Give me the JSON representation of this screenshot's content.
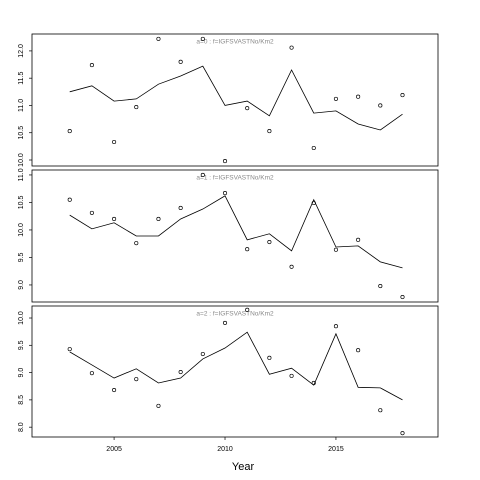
{
  "chart_data": [
    {
      "type": "line",
      "title": "a=0 : f=IGFSVASTNo/Km2",
      "x": [
        2003,
        2004,
        2005,
        2006,
        2007,
        2008,
        2009,
        2010,
        2011,
        2012,
        2013,
        2014,
        2015,
        2016,
        2017,
        2018
      ],
      "xlim": [
        2001.3,
        2019.6
      ],
      "ylim": [
        9.89,
        12.31
      ],
      "yticks": [
        {
          "value": 10.0,
          "label": "10.0"
        },
        {
          "value": 10.5,
          "label": "10.5"
        },
        {
          "value": 11.0,
          "label": "11.0"
        },
        {
          "value": 11.5,
          "label": "11.5"
        },
        {
          "value": 12.0,
          "label": "12.0"
        }
      ],
      "series": [
        {
          "color": "#000000",
          "marker": "circle",
          "values": [
            10.53,
            11.74,
            10.33,
            10.97,
            12.22,
            11.8,
            12.22,
            9.98,
            10.95,
            10.53,
            12.06,
            10.22,
            11.12,
            11.16,
            11.0,
            11.19
          ]
        },
        {
          "color": "#000000",
          "marker": "none",
          "values": [
            11.25,
            11.36,
            11.08,
            11.12,
            11.39,
            11.54,
            11.72,
            11.0,
            11.08,
            10.81,
            11.65,
            10.86,
            10.9,
            10.66,
            10.55,
            10.84
          ]
        }
      ]
    },
    {
      "type": "line",
      "title": "a=1 : f=IGFSVASTNo/Km2",
      "x": [
        2003,
        2004,
        2005,
        2006,
        2007,
        2008,
        2009,
        2010,
        2011,
        2012,
        2013,
        2014,
        2015,
        2016,
        2017,
        2018
      ],
      "xlim": [
        2001.3,
        2019.6
      ],
      "ylim": [
        8.69,
        11.09
      ],
      "yticks": [
        {
          "value": 9.0,
          "label": "9.0"
        },
        {
          "value": 9.5,
          "label": "9.5"
        },
        {
          "value": 10.0,
          "label": "10.0"
        },
        {
          "value": 10.5,
          "label": "10.5"
        },
        {
          "value": 11.0,
          "label": "11.0"
        }
      ],
      "series": [
        {
          "color": "#000000",
          "marker": "circle",
          "values": [
            10.55,
            10.31,
            10.2,
            9.76,
            10.2,
            10.4,
            11.0,
            10.67,
            9.65,
            9.78,
            9.33,
            10.49,
            9.64,
            9.82,
            8.98,
            8.78
          ]
        },
        {
          "color": "#000000",
          "marker": "none",
          "values": [
            10.27,
            10.02,
            10.13,
            9.89,
            9.89,
            10.2,
            10.38,
            10.62,
            9.82,
            9.93,
            9.62,
            10.55,
            9.69,
            9.71,
            9.42,
            9.31
          ]
        }
      ]
    },
    {
      "type": "line",
      "title": "a=2 : f=IGFSVASTNo/Km2",
      "xlabel": "Year",
      "x": [
        2003,
        2004,
        2005,
        2006,
        2007,
        2008,
        2009,
        2010,
        2011,
        2012,
        2013,
        2014,
        2015,
        2016,
        2017,
        2018
      ],
      "xlim": [
        2001.3,
        2019.6
      ],
      "xticks": [
        2005,
        2010,
        2015
      ],
      "ylim": [
        7.82,
        10.22
      ],
      "yticks": [
        {
          "value": 8.0,
          "label": "8.0"
        },
        {
          "value": 8.5,
          "label": "8.5"
        },
        {
          "value": 9.0,
          "label": "9.0"
        },
        {
          "value": 9.5,
          "label": "9.5"
        },
        {
          "value": 10.0,
          "label": "10.0"
        }
      ],
      "series": [
        {
          "color": "#000000",
          "marker": "circle",
          "values": [
            9.43,
            8.99,
            8.68,
            8.88,
            8.39,
            9.01,
            9.34,
            9.91,
            10.15,
            9.27,
            8.94,
            8.81,
            9.85,
            9.41,
            8.31,
            7.89
          ]
        },
        {
          "color": "#000000",
          "marker": "none",
          "values": [
            9.38,
            9.14,
            8.9,
            9.07,
            8.81,
            8.9,
            9.25,
            9.45,
            9.74,
            8.97,
            9.08,
            8.77,
            9.71,
            8.73,
            8.72,
            8.5
          ]
        }
      ]
    }
  ]
}
